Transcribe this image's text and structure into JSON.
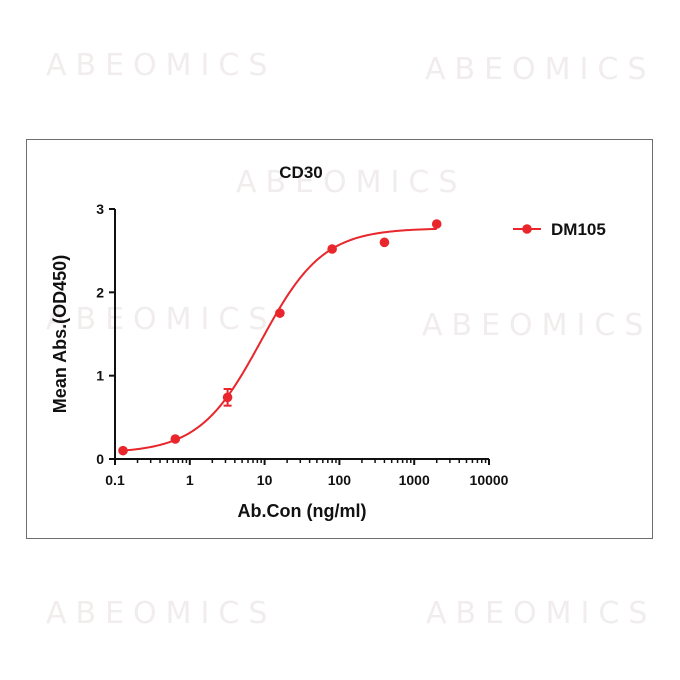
{
  "watermark": "ABEOMICS",
  "chart_data": {
    "type": "scatter",
    "title": "CD30",
    "xlabel": "Ab.Con (ng/ml)",
    "ylabel": "Mean Abs.(OD450)",
    "xscale": "log",
    "xlim": [
      0.1,
      10000
    ],
    "ylim": [
      0,
      3
    ],
    "x_ticks": [
      "0.1",
      "1",
      "10",
      "100",
      "1000",
      "10000"
    ],
    "x_tick_values": [
      0.1,
      1,
      10,
      100,
      1000,
      10000
    ],
    "y_ticks": [
      "0",
      "1",
      "2",
      "3"
    ],
    "y_tick_values": [
      0,
      1,
      2,
      3
    ],
    "legend_position": "right",
    "grid": false,
    "series": [
      {
        "name": "DM105",
        "color": "#e8262b",
        "x": [
          0.128,
          0.64,
          3.2,
          16,
          80,
          400,
          2000
        ],
        "y": [
          0.1,
          0.24,
          0.74,
          1.75,
          2.52,
          2.6,
          2.82
        ],
        "error": [
          0,
          0,
          0.1,
          0,
          0,
          0,
          0
        ],
        "fit": {
          "model": "4PL",
          "bottom": 0.07,
          "top": 2.77,
          "ec50": 9.0,
          "hill": 1.05
        }
      }
    ]
  }
}
